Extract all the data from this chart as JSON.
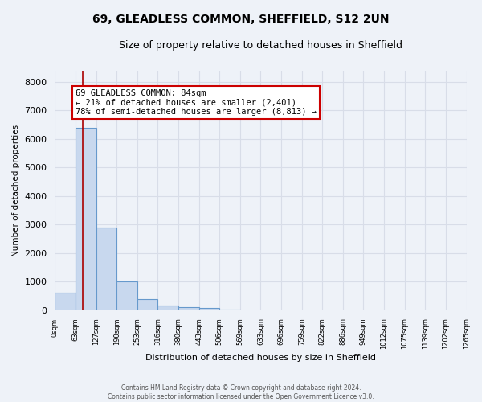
{
  "title": "69, GLEADLESS COMMON, SHEFFIELD, S12 2UN",
  "subtitle": "Size of property relative to detached houses in Sheffield",
  "xlabel": "Distribution of detached houses by size in Sheffield",
  "ylabel": "Number of detached properties",
  "bar_values": [
    600,
    6400,
    2900,
    1000,
    380,
    170,
    100,
    80,
    10,
    5,
    3,
    2,
    1,
    1,
    0,
    0,
    0,
    0,
    0,
    0
  ],
  "bar_color": "#c8d8ee",
  "bar_edge_color": "#6699cc",
  "x_labels": [
    "0sqm",
    "63sqm",
    "127sqm",
    "190sqm",
    "253sqm",
    "316sqm",
    "380sqm",
    "443sqm",
    "506sqm",
    "569sqm",
    "633sqm",
    "696sqm",
    "759sqm",
    "822sqm",
    "886sqm",
    "949sqm",
    "1012sqm",
    "1075sqm",
    "1139sqm",
    "1202sqm",
    "1265sqm"
  ],
  "ylim": [
    0,
    8400
  ],
  "yticks": [
    0,
    1000,
    2000,
    3000,
    4000,
    5000,
    6000,
    7000,
    8000
  ],
  "property_size": 84,
  "bin_width": 63,
  "red_line_color": "#aa0000",
  "annotation_text": "69 GLEADLESS COMMON: 84sqm\n← 21% of detached houses are smaller (2,401)\n78% of semi-detached houses are larger (8,813) →",
  "annotation_box_color": "#ffffff",
  "annotation_border_color": "#cc0000",
  "footer_text": "Contains HM Land Registry data © Crown copyright and database right 2024.\nContains public sector information licensed under the Open Government Licence v3.0.",
  "background_color": "#eef2f8",
  "grid_color": "#d8dde8",
  "title_fontsize": 10,
  "subtitle_fontsize": 9
}
